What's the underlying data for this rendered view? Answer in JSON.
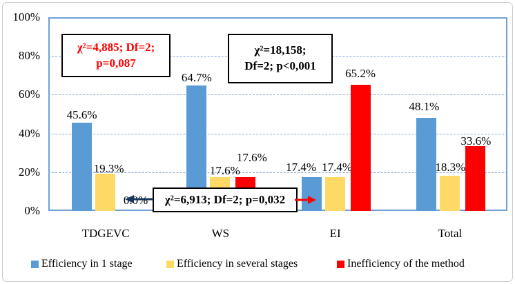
{
  "chart_data": {
    "type": "bar",
    "title": "",
    "categories": [
      "TDGEVC",
      "WS",
      "EI",
      "Total"
    ],
    "series": [
      {
        "name": "Efficiency in 1 stage",
        "color": "#5b9bd5",
        "values": [
          45.6,
          64.7,
          17.4,
          48.1
        ]
      },
      {
        "name": "Efficiency in several stages",
        "color": "#ffd966",
        "values": [
          19.3,
          17.6,
          17.4,
          18.3
        ]
      },
      {
        "name": "Inefficiency of the method",
        "color": "#ff0000",
        "values": [
          0.0,
          17.6,
          65.2,
          33.6
        ]
      }
    ],
    "value_labels": [
      [
        "45.6%",
        "19.3%",
        "0.0%"
      ],
      [
        "64.7%",
        "17.6%",
        "17.6%"
      ],
      [
        "17.4%",
        "17.4%",
        "65.2%"
      ],
      [
        "48.1%",
        "18.3%",
        "33.6%"
      ]
    ],
    "y_ticks": [
      "100%",
      "80%",
      "60%",
      "40%",
      "20%",
      "0%"
    ],
    "ylim": [
      0,
      100
    ],
    "grid": "horizontal-dashed",
    "legend_position": "bottom"
  },
  "annotations": [
    {
      "lines": [
        "χ²=4,885; Df=2;",
        "p=0,087"
      ],
      "color": "#ff0000"
    },
    {
      "lines": [
        "χ²=18,158;",
        "Df=2; p<0,001"
      ],
      "color": "#000000"
    },
    {
      "lines": [
        "χ²=6,913; Df=2; p=0,032"
      ],
      "color": "#000000"
    }
  ],
  "colors": {
    "plot_border": "#6fa0d6",
    "gridline": "#84abdb",
    "arrow_left": "#17375e",
    "arrow_right": "#ff0000"
  }
}
